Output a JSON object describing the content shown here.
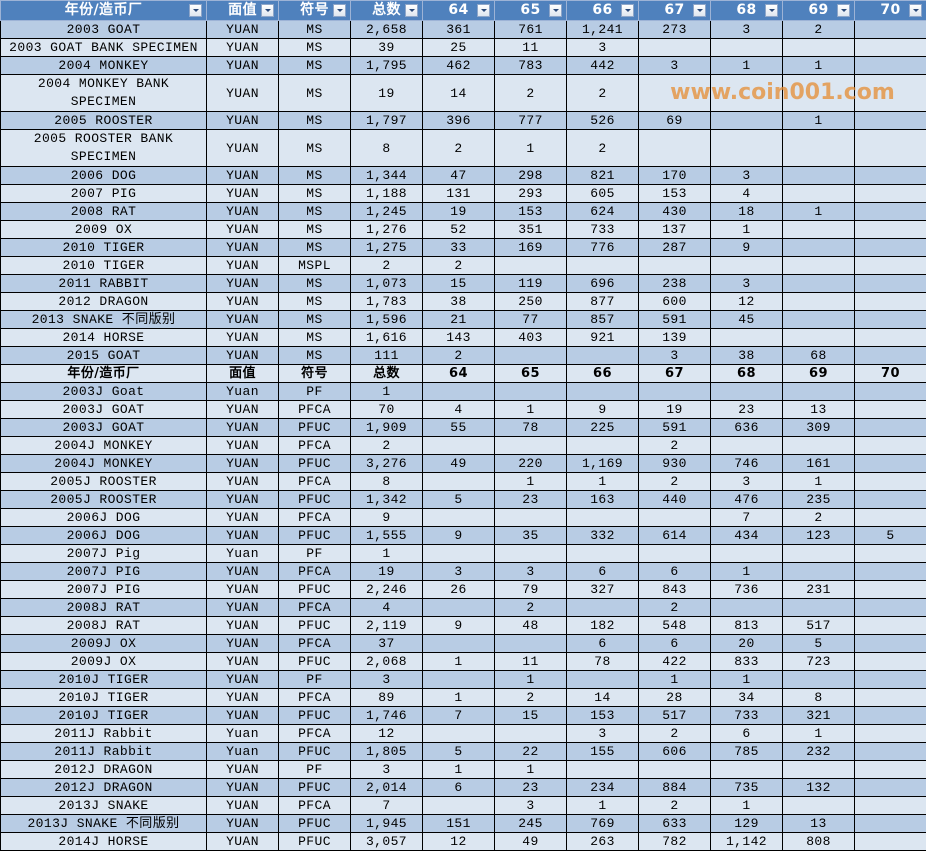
{
  "colors": {
    "header_bg": "#4f81bd",
    "row_dark": "#b8cce4",
    "row_light": "#dce6f1",
    "watermark": "#e68c32"
  },
  "columns": [
    "年份/造币厂",
    "面值",
    "符号",
    "总数",
    "64",
    "65",
    "66",
    "67",
    "68",
    "69",
    "70"
  ],
  "rows": [
    {
      "type": "data",
      "cells": [
        "2003 GOAT",
        "YUAN",
        "MS",
        "2,658",
        "361",
        "761",
        "1,241",
        "273",
        "3",
        "2",
        ""
      ]
    },
    {
      "type": "data",
      "cells": [
        "2003 GOAT BANK SPECIMEN",
        "YUAN",
        "MS",
        "39",
        "25",
        "11",
        "3",
        "",
        "",
        "",
        ""
      ]
    },
    {
      "type": "data",
      "cells": [
        "2004 MONKEY",
        "YUAN",
        "MS",
        "1,795",
        "462",
        "783",
        "442",
        "3",
        "1",
        "1",
        ""
      ]
    },
    {
      "type": "data",
      "tall": true,
      "cells": [
        "2004 MONKEY BANK SPECIMEN",
        "YUAN",
        "MS",
        "19",
        "14",
        "2",
        "2",
        "",
        "",
        "",
        ""
      ]
    },
    {
      "type": "data",
      "cells": [
        "2005 ROOSTER",
        "YUAN",
        "MS",
        "1,797",
        "396",
        "777",
        "526",
        "69",
        "",
        "1",
        ""
      ]
    },
    {
      "type": "data",
      "tall": true,
      "cells": [
        "2005 ROOSTER BANK SPECIMEN",
        "YUAN",
        "MS",
        "8",
        "2",
        "1",
        "2",
        "",
        "",
        "",
        ""
      ]
    },
    {
      "type": "data",
      "cells": [
        "2006 DOG",
        "YUAN",
        "MS",
        "1,344",
        "47",
        "298",
        "821",
        "170",
        "3",
        "",
        ""
      ]
    },
    {
      "type": "data",
      "cells": [
        "2007 PIG",
        "YUAN",
        "MS",
        "1,188",
        "131",
        "293",
        "605",
        "153",
        "4",
        "",
        ""
      ]
    },
    {
      "type": "data",
      "cells": [
        "2008 RAT",
        "YUAN",
        "MS",
        "1,245",
        "19",
        "153",
        "624",
        "430",
        "18",
        "1",
        ""
      ]
    },
    {
      "type": "data",
      "cells": [
        "2009 OX",
        "YUAN",
        "MS",
        "1,276",
        "52",
        "351",
        "733",
        "137",
        "1",
        "",
        ""
      ]
    },
    {
      "type": "data",
      "cells": [
        "2010 TIGER",
        "YUAN",
        "MS",
        "1,275",
        "33",
        "169",
        "776",
        "287",
        "9",
        "",
        ""
      ]
    },
    {
      "type": "data",
      "cells": [
        "2010 TIGER",
        "YUAN",
        "MSPL",
        "2",
        "2",
        "",
        "",
        "",
        "",
        "",
        ""
      ]
    },
    {
      "type": "data",
      "cells": [
        "2011 RABBIT",
        "YUAN",
        "MS",
        "1,073",
        "15",
        "119",
        "696",
        "238",
        "3",
        "",
        ""
      ]
    },
    {
      "type": "data",
      "cells": [
        "2012 DRAGON",
        "YUAN",
        "MS",
        "1,783",
        "38",
        "250",
        "877",
        "600",
        "12",
        "",
        ""
      ]
    },
    {
      "type": "data",
      "cells": [
        "2013 SNAKE 不同版别",
        "YUAN",
        "MS",
        "1,596",
        "21",
        "77",
        "857",
        "591",
        "45",
        "",
        ""
      ]
    },
    {
      "type": "data",
      "cells": [
        "2014 HORSE",
        "YUAN",
        "MS",
        "1,616",
        "143",
        "403",
        "921",
        "139",
        "",
        "",
        ""
      ]
    },
    {
      "type": "data",
      "cells": [
        "2015 GOAT",
        "YUAN",
        "MS",
        "111",
        "2",
        "",
        "",
        "3",
        "38",
        "68",
        ""
      ]
    },
    {
      "type": "subhead",
      "cells": [
        "年份/造币厂",
        "面值",
        "符号",
        "总数",
        "64",
        "65",
        "66",
        "67",
        "68",
        "69",
        "70"
      ]
    },
    {
      "type": "data",
      "cells": [
        "2003J Goat",
        "Yuan",
        "PF",
        "1",
        "",
        "",
        "",
        "",
        "",
        "",
        ""
      ]
    },
    {
      "type": "data",
      "cells": [
        "2003J GOAT",
        "YUAN",
        "PFCA",
        "70",
        "4",
        "1",
        "9",
        "19",
        "23",
        "13",
        ""
      ]
    },
    {
      "type": "data",
      "cells": [
        "2003J GOAT",
        "YUAN",
        "PFUC",
        "1,909",
        "55",
        "78",
        "225",
        "591",
        "636",
        "309",
        ""
      ]
    },
    {
      "type": "data",
      "cells": [
        "2004J MONKEY",
        "YUAN",
        "PFCA",
        "2",
        "",
        "",
        "",
        "2",
        "",
        "",
        ""
      ]
    },
    {
      "type": "data",
      "cells": [
        "2004J MONKEY",
        "YUAN",
        "PFUC",
        "3,276",
        "49",
        "220",
        "1,169",
        "930",
        "746",
        "161",
        ""
      ]
    },
    {
      "type": "data",
      "cells": [
        "2005J ROOSTER",
        "YUAN",
        "PFCA",
        "8",
        "",
        "1",
        "1",
        "2",
        "3",
        "1",
        ""
      ]
    },
    {
      "type": "data",
      "cells": [
        "2005J ROOSTER",
        "YUAN",
        "PFUC",
        "1,342",
        "5",
        "23",
        "163",
        "440",
        "476",
        "235",
        ""
      ]
    },
    {
      "type": "data",
      "cells": [
        "2006J DOG",
        "YUAN",
        "PFCA",
        "9",
        "",
        "",
        "",
        "",
        "7",
        "2",
        ""
      ]
    },
    {
      "type": "data",
      "cells": [
        "2006J DOG",
        "YUAN",
        "PFUC",
        "1,555",
        "9",
        "35",
        "332",
        "614",
        "434",
        "123",
        "5"
      ]
    },
    {
      "type": "data",
      "cells": [
        "2007J Pig",
        "Yuan",
        "PF",
        "1",
        "",
        "",
        "",
        "",
        "",
        "",
        ""
      ]
    },
    {
      "type": "data",
      "cells": [
        "2007J PIG",
        "YUAN",
        "PFCA",
        "19",
        "3",
        "3",
        "6",
        "6",
        "1",
        "",
        ""
      ]
    },
    {
      "type": "data",
      "cells": [
        "2007J PIG",
        "YUAN",
        "PFUC",
        "2,246",
        "26",
        "79",
        "327",
        "843",
        "736",
        "231",
        ""
      ]
    },
    {
      "type": "data",
      "cells": [
        "2008J RAT",
        "YUAN",
        "PFCA",
        "4",
        "",
        "2",
        "",
        "2",
        "",
        "",
        ""
      ]
    },
    {
      "type": "data",
      "cells": [
        "2008J RAT",
        "YUAN",
        "PFUC",
        "2,119",
        "9",
        "48",
        "182",
        "548",
        "813",
        "517",
        ""
      ]
    },
    {
      "type": "data",
      "cells": [
        "2009J OX",
        "YUAN",
        "PFCA",
        "37",
        "",
        "",
        "6",
        "6",
        "20",
        "5",
        ""
      ]
    },
    {
      "type": "data",
      "cells": [
        "2009J OX",
        "YUAN",
        "PFUC",
        "2,068",
        "1",
        "11",
        "78",
        "422",
        "833",
        "723",
        ""
      ]
    },
    {
      "type": "data",
      "cells": [
        "2010J TIGER",
        "YUAN",
        "PF",
        "3",
        "",
        "1",
        "",
        "1",
        "1",
        "",
        ""
      ]
    },
    {
      "type": "data",
      "cells": [
        "2010J TIGER",
        "YUAN",
        "PFCA",
        "89",
        "1",
        "2",
        "14",
        "28",
        "34",
        "8",
        ""
      ]
    },
    {
      "type": "data",
      "cells": [
        "2010J TIGER",
        "YUAN",
        "PFUC",
        "1,746",
        "7",
        "15",
        "153",
        "517",
        "733",
        "321",
        ""
      ]
    },
    {
      "type": "data",
      "cells": [
        "2011J Rabbit",
        "Yuan",
        "PFCA",
        "12",
        "",
        "",
        "3",
        "2",
        "6",
        "1",
        ""
      ]
    },
    {
      "type": "data",
      "cells": [
        "2011J Rabbit",
        "Yuan",
        "PFUC",
        "1,805",
        "5",
        "22",
        "155",
        "606",
        "785",
        "232",
        ""
      ]
    },
    {
      "type": "data",
      "cells": [
        "2012J DRAGON",
        "YUAN",
        "PF",
        "3",
        "1",
        "1",
        "",
        "",
        "",
        "",
        ""
      ]
    },
    {
      "type": "data",
      "cells": [
        "2012J DRAGON",
        "YUAN",
        "PFUC",
        "2,014",
        "6",
        "23",
        "234",
        "884",
        "735",
        "132",
        ""
      ]
    },
    {
      "type": "data",
      "cells": [
        "2013J SNAKE",
        "YUAN",
        "PFCA",
        "7",
        "",
        "3",
        "1",
        "2",
        "1",
        "",
        ""
      ]
    },
    {
      "type": "data",
      "cells": [
        "2013J SNAKE 不同版别",
        "YUAN",
        "PFUC",
        "1,945",
        "151",
        "245",
        "769",
        "633",
        "129",
        "13",
        ""
      ]
    },
    {
      "type": "data",
      "cells": [
        "2014J HORSE",
        "YUAN",
        "PFUC",
        "3,057",
        "12",
        "49",
        "263",
        "782",
        "1,142",
        "808",
        ""
      ]
    }
  ],
  "watermark": "www.coin001.com"
}
